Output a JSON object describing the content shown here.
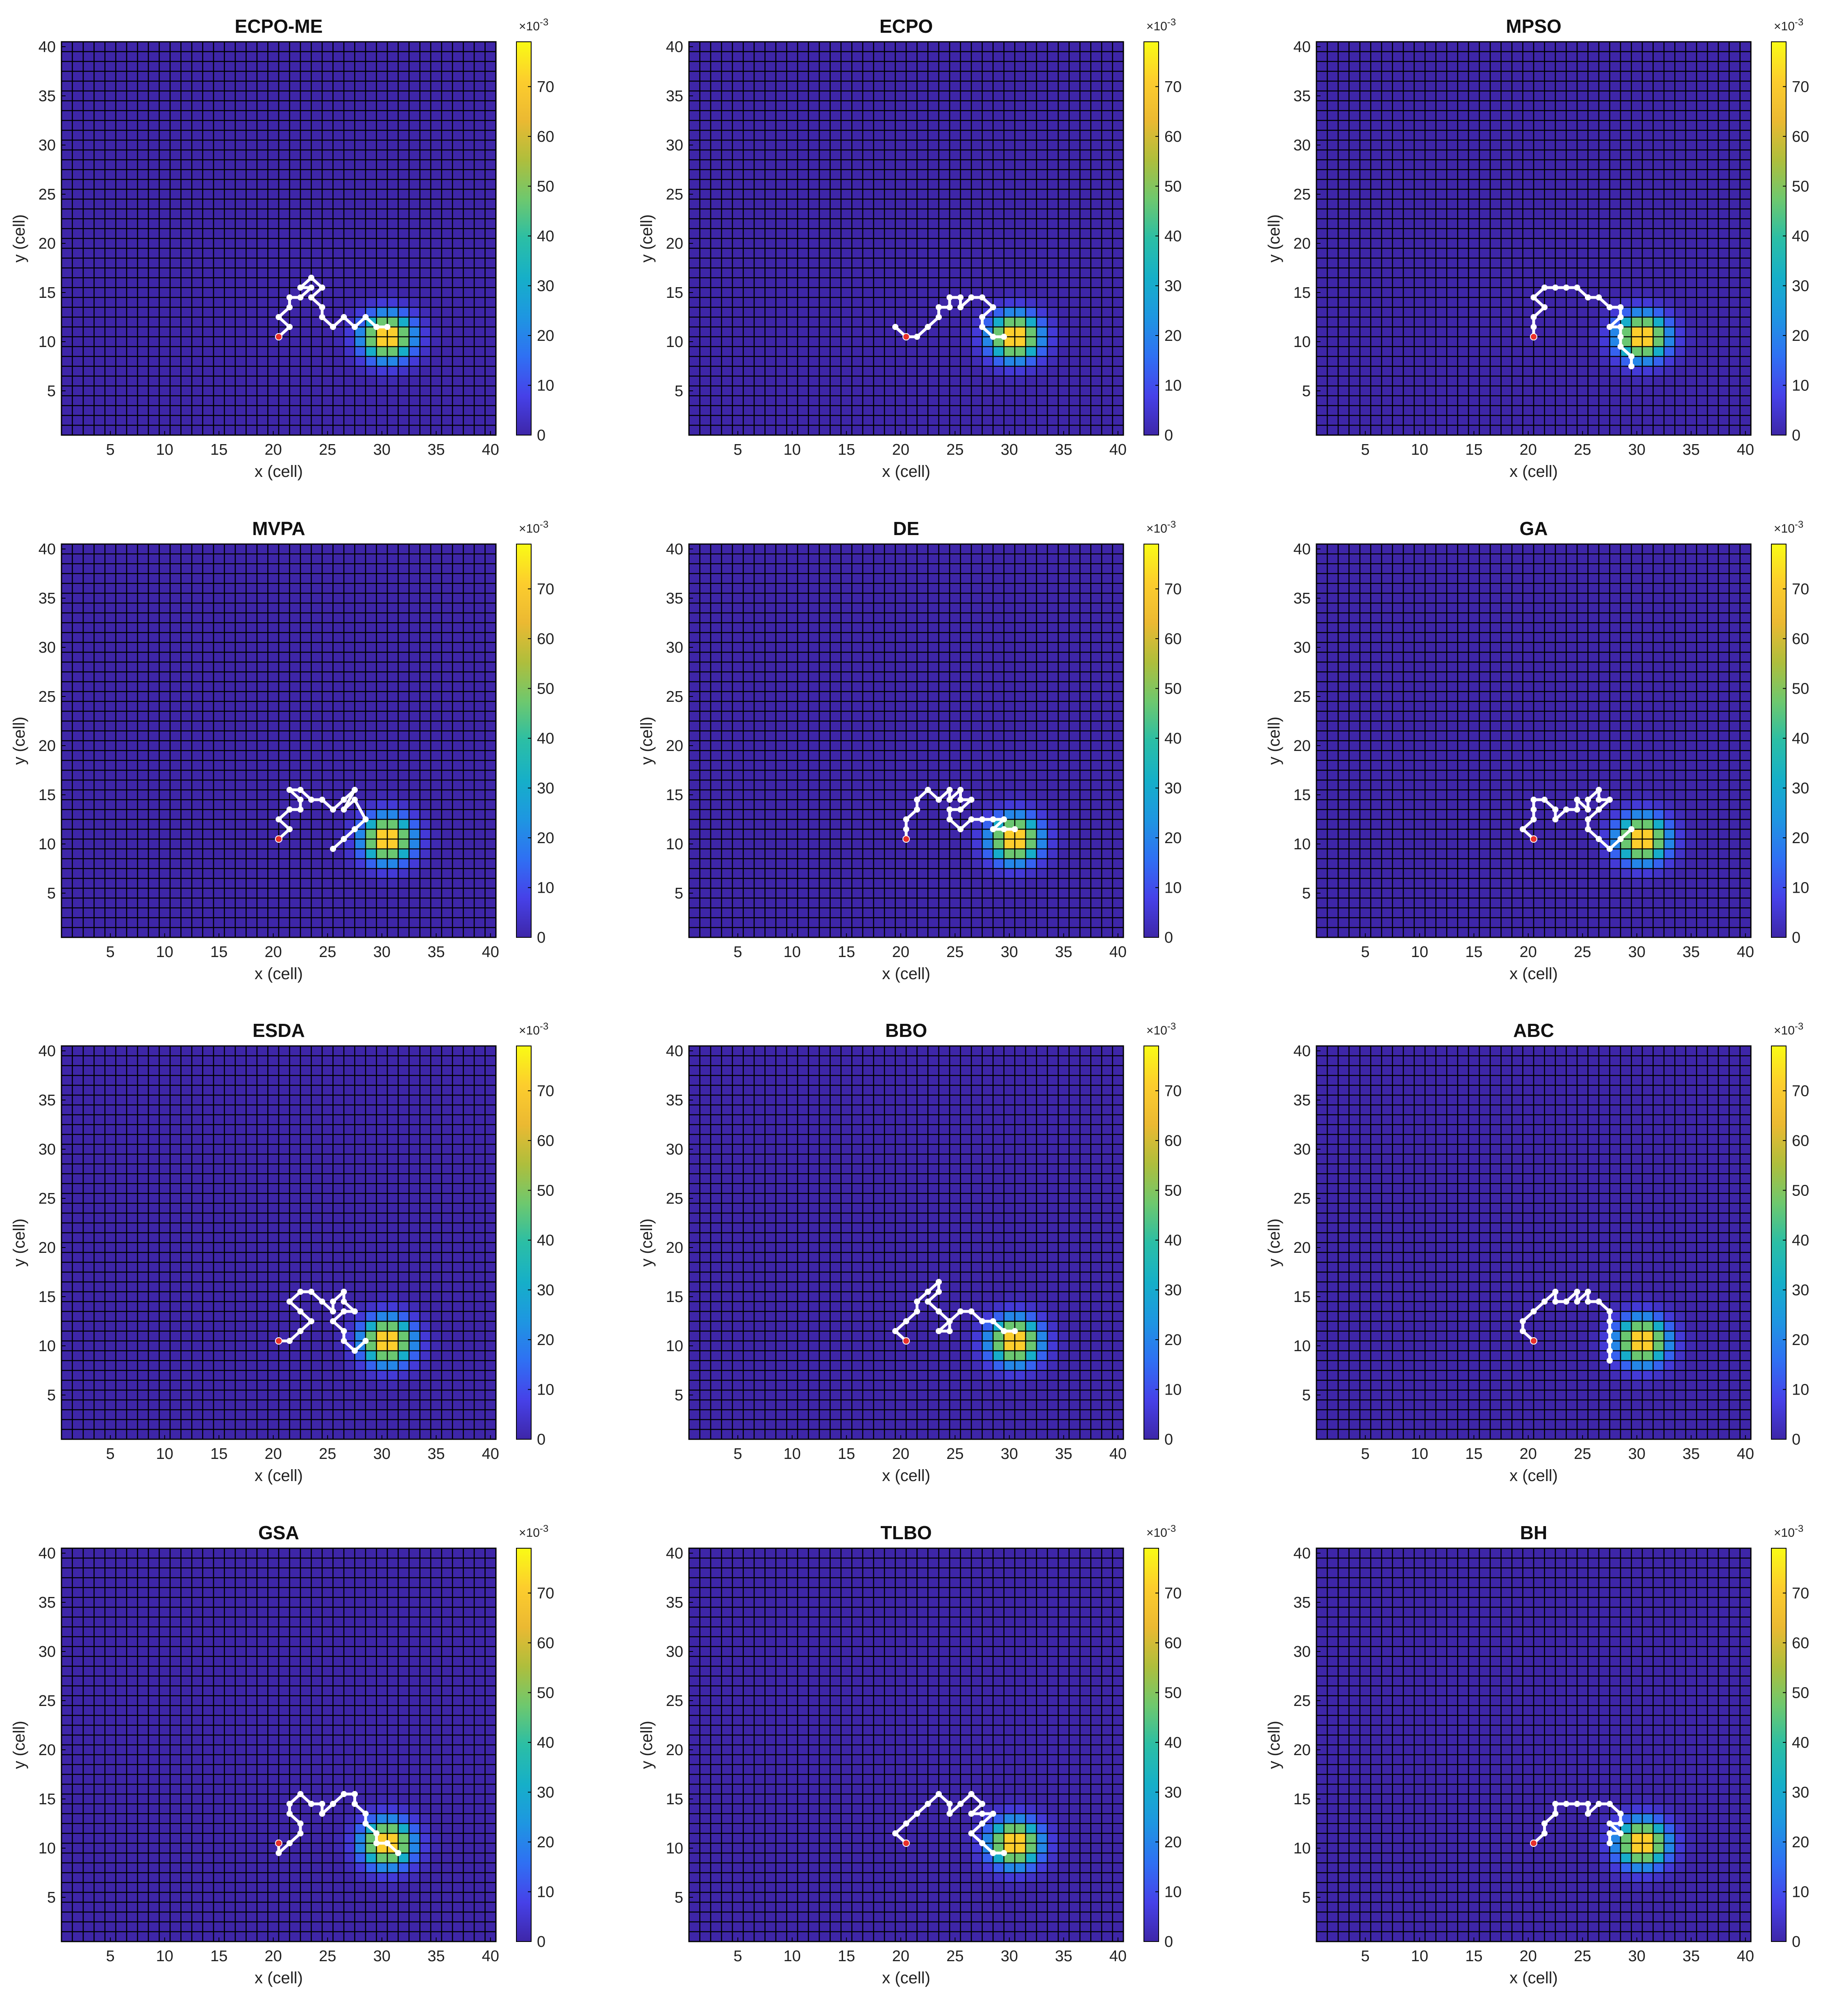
{
  "chart_data": {
    "type": "heatmap",
    "shared": {
      "grid_size": 40,
      "xlabel": "x (cell)",
      "ylabel": "y (cell)",
      "xlim": [
        0.5,
        40.5
      ],
      "ylim": [
        0.5,
        40.5
      ],
      "x_ticks": [
        5,
        10,
        15,
        20,
        25,
        30,
        35,
        40
      ],
      "y_ticks": [
        5,
        10,
        15,
        20,
        25,
        30,
        35,
        40
      ],
      "colorbar": {
        "ticks": [
          0,
          10,
          20,
          30,
          40,
          50,
          60,
          70
        ],
        "range": [
          0,
          79
        ],
        "multiplier_label": "×10",
        "multiplier_exponent": "-3",
        "colormap": "parula"
      },
      "target": {
        "center": [
          30.5,
          10.5
        ],
        "peak": 79,
        "sigma": 1.55
      },
      "start_point": [
        20.5,
        10.5
      ],
      "grid": true,
      "colors": {
        "background_cell": "#3e26a8",
        "grid_line": "#000000",
        "path": "#ffffff",
        "start_marker": "#e8302a"
      }
    },
    "panels": [
      {
        "title": "ECPO-ME",
        "path": [
          [
            20.5,
            10.5
          ],
          [
            21.5,
            11.5
          ],
          [
            20.5,
            12.5
          ],
          [
            21.5,
            13.5
          ],
          [
            21.5,
            14.5
          ],
          [
            22.5,
            14.5
          ],
          [
            23.5,
            15.5
          ],
          [
            22.5,
            15.5
          ],
          [
            23.5,
            16.5
          ],
          [
            24.5,
            15.5
          ],
          [
            23.5,
            14.5
          ],
          [
            24.5,
            13.5
          ],
          [
            24.5,
            12.5
          ],
          [
            25.5,
            11.5
          ],
          [
            26.5,
            12.5
          ],
          [
            27.5,
            11.5
          ],
          [
            28.5,
            12.5
          ],
          [
            29.5,
            11.5
          ],
          [
            30.5,
            11.5
          ]
        ]
      },
      {
        "title": "ECPO",
        "path": [
          [
            20.5,
            10.5
          ],
          [
            19.5,
            11.5
          ],
          [
            20.5,
            10.5
          ],
          [
            21.5,
            10.5
          ],
          [
            22.5,
            11.5
          ],
          [
            23.5,
            12.5
          ],
          [
            23.5,
            13.5
          ],
          [
            24.5,
            13.5
          ],
          [
            24.5,
            14.5
          ],
          [
            25.5,
            14.5
          ],
          [
            25.5,
            13.5
          ],
          [
            26.5,
            14.5
          ],
          [
            27.5,
            14.5
          ],
          [
            28.5,
            13.5
          ],
          [
            27.5,
            12.5
          ],
          [
            27.5,
            11.5
          ],
          [
            28.5,
            10.5
          ],
          [
            29.5,
            10.5
          ]
        ]
      },
      {
        "title": "MPSO",
        "path": [
          [
            20.5,
            10.5
          ],
          [
            20.5,
            11.5
          ],
          [
            20.5,
            12.5
          ],
          [
            21.5,
            13.5
          ],
          [
            20.5,
            14.5
          ],
          [
            21.5,
            15.5
          ],
          [
            22.5,
            15.5
          ],
          [
            23.5,
            15.5
          ],
          [
            24.5,
            15.5
          ],
          [
            25.5,
            14.5
          ],
          [
            26.5,
            14.5
          ],
          [
            27.5,
            13.5
          ],
          [
            28.5,
            13.5
          ],
          [
            28.5,
            12.5
          ],
          [
            27.5,
            11.5
          ],
          [
            28.5,
            11.5
          ],
          [
            28.5,
            10.5
          ],
          [
            28.5,
            9.5
          ],
          [
            29.5,
            8.5
          ],
          [
            29.5,
            7.5
          ]
        ]
      },
      {
        "title": "MVPA",
        "path": [
          [
            20.5,
            10.5
          ],
          [
            21.5,
            11.5
          ],
          [
            20.5,
            12.5
          ],
          [
            21.5,
            13.5
          ],
          [
            22.5,
            13.5
          ],
          [
            22.5,
            14.5
          ],
          [
            21.5,
            15.5
          ],
          [
            22.5,
            15.5
          ],
          [
            23.5,
            14.5
          ],
          [
            24.5,
            14.5
          ],
          [
            25.5,
            13.5
          ],
          [
            26.5,
            14.5
          ],
          [
            27.5,
            15.5
          ],
          [
            26.5,
            13.5
          ],
          [
            27.5,
            14.5
          ],
          [
            28.5,
            12.5
          ],
          [
            27.5,
            11.5
          ],
          [
            26.5,
            10.5
          ],
          [
            25.5,
            9.5
          ]
        ]
      },
      {
        "title": "DE",
        "path": [
          [
            20.5,
            10.5
          ],
          [
            20.5,
            11.5
          ],
          [
            20.5,
            12.5
          ],
          [
            21.5,
            13.5
          ],
          [
            21.5,
            14.5
          ],
          [
            22.5,
            15.5
          ],
          [
            23.5,
            14.5
          ],
          [
            24.5,
            15.5
          ],
          [
            24.5,
            14.5
          ],
          [
            25.5,
            15.5
          ],
          [
            25.5,
            14.5
          ],
          [
            26.5,
            14.5
          ],
          [
            25.5,
            13.5
          ],
          [
            24.5,
            13.5
          ],
          [
            24.5,
            12.5
          ],
          [
            25.5,
            11.5
          ],
          [
            26.5,
            12.5
          ],
          [
            27.5,
            12.5
          ],
          [
            28.5,
            12.5
          ],
          [
            29.5,
            12.5
          ],
          [
            28.5,
            11.5
          ],
          [
            29.5,
            11.5
          ],
          [
            30.5,
            11.5
          ]
        ]
      },
      {
        "title": "GA",
        "path": [
          [
            20.5,
            10.5
          ],
          [
            19.5,
            11.5
          ],
          [
            20.5,
            12.5
          ],
          [
            20.5,
            13.5
          ],
          [
            20.5,
            14.5
          ],
          [
            21.5,
            14.5
          ],
          [
            22.5,
            13.5
          ],
          [
            22.5,
            12.5
          ],
          [
            23.5,
            13.5
          ],
          [
            24.5,
            13.5
          ],
          [
            24.5,
            14.5
          ],
          [
            25.5,
            13.5
          ],
          [
            25.5,
            14.5
          ],
          [
            26.5,
            15.5
          ],
          [
            26.5,
            14.5
          ],
          [
            27.5,
            14.5
          ],
          [
            26.5,
            13.5
          ],
          [
            25.5,
            12.5
          ],
          [
            25.5,
            11.5
          ],
          [
            26.5,
            10.5
          ],
          [
            27.5,
            9.5
          ],
          [
            28.5,
            10.5
          ],
          [
            29.5,
            11.5
          ]
        ]
      },
      {
        "title": "ESDA",
        "path": [
          [
            20.5,
            10.5
          ],
          [
            21.5,
            10.5
          ],
          [
            22.5,
            11.5
          ],
          [
            23.5,
            12.5
          ],
          [
            22.5,
            13.5
          ],
          [
            21.5,
            14.5
          ],
          [
            22.5,
            15.5
          ],
          [
            23.5,
            15.5
          ],
          [
            24.5,
            14.5
          ],
          [
            25.5,
            13.5
          ],
          [
            25.5,
            14.5
          ],
          [
            26.5,
            15.5
          ],
          [
            26.5,
            14.5
          ],
          [
            27.5,
            13.5
          ],
          [
            26.5,
            13.5
          ],
          [
            25.5,
            12.5
          ],
          [
            26.5,
            11.5
          ],
          [
            26.5,
            10.5
          ],
          [
            27.5,
            9.5
          ],
          [
            28.5,
            10.5
          ]
        ]
      },
      {
        "title": "BBO",
        "path": [
          [
            20.5,
            10.5
          ],
          [
            19.5,
            11.5
          ],
          [
            20.5,
            12.5
          ],
          [
            21.5,
            13.5
          ],
          [
            21.5,
            14.5
          ],
          [
            22.5,
            15.5
          ],
          [
            23.5,
            16.5
          ],
          [
            23.5,
            15.5
          ],
          [
            22.5,
            14.5
          ],
          [
            23.5,
            13.5
          ],
          [
            24.5,
            12.5
          ],
          [
            23.5,
            11.5
          ],
          [
            24.5,
            11.5
          ],
          [
            24.5,
            12.5
          ],
          [
            25.5,
            13.5
          ],
          [
            26.5,
            13.5
          ],
          [
            27.5,
            12.5
          ],
          [
            28.5,
            12.5
          ],
          [
            29.5,
            11.5
          ],
          [
            30.5,
            11.5
          ]
        ]
      },
      {
        "title": "ABC",
        "path": [
          [
            20.5,
            10.5
          ],
          [
            19.5,
            11.5
          ],
          [
            19.5,
            12.5
          ],
          [
            20.5,
            13.5
          ],
          [
            21.5,
            14.5
          ],
          [
            22.5,
            15.5
          ],
          [
            22.5,
            14.5
          ],
          [
            23.5,
            14.5
          ],
          [
            24.5,
            15.5
          ],
          [
            24.5,
            14.5
          ],
          [
            25.5,
            15.5
          ],
          [
            25.5,
            14.5
          ],
          [
            26.5,
            14.5
          ],
          [
            27.5,
            13.5
          ],
          [
            27.5,
            12.5
          ],
          [
            27.5,
            11.5
          ],
          [
            27.5,
            10.5
          ],
          [
            27.5,
            9.5
          ],
          [
            27.5,
            8.5
          ]
        ]
      },
      {
        "title": "GSA",
        "path": [
          [
            20.5,
            10.5
          ],
          [
            20.5,
            9.5
          ],
          [
            21.5,
            10.5
          ],
          [
            22.5,
            11.5
          ],
          [
            22.5,
            12.5
          ],
          [
            21.5,
            13.5
          ],
          [
            21.5,
            14.5
          ],
          [
            22.5,
            15.5
          ],
          [
            23.5,
            14.5
          ],
          [
            24.5,
            14.5
          ],
          [
            24.5,
            13.5
          ],
          [
            25.5,
            14.5
          ],
          [
            26.5,
            15.5
          ],
          [
            27.5,
            15.5
          ],
          [
            27.5,
            14.5
          ],
          [
            28.5,
            13.5
          ],
          [
            28.5,
            12.5
          ],
          [
            29.5,
            11.5
          ],
          [
            29.5,
            10.5
          ],
          [
            30.5,
            10.5
          ],
          [
            31.5,
            9.5
          ]
        ]
      },
      {
        "title": "TLBO",
        "path": [
          [
            20.5,
            10.5
          ],
          [
            19.5,
            11.5
          ],
          [
            20.5,
            12.5
          ],
          [
            21.5,
            13.5
          ],
          [
            22.5,
            14.5
          ],
          [
            23.5,
            15.5
          ],
          [
            24.5,
            14.5
          ],
          [
            24.5,
            13.5
          ],
          [
            25.5,
            14.5
          ],
          [
            26.5,
            15.5
          ],
          [
            27.5,
            14.5
          ],
          [
            26.5,
            13.5
          ],
          [
            27.5,
            13.5
          ],
          [
            28.5,
            13.5
          ],
          [
            27.5,
            12.5
          ],
          [
            26.5,
            11.5
          ],
          [
            27.5,
            10.5
          ],
          [
            28.5,
            9.5
          ],
          [
            29.5,
            9.5
          ]
        ]
      },
      {
        "title": "BH",
        "path": [
          [
            20.5,
            10.5
          ],
          [
            21.5,
            11.5
          ],
          [
            21.5,
            12.5
          ],
          [
            22.5,
            13.5
          ],
          [
            22.5,
            14.5
          ],
          [
            23.5,
            14.5
          ],
          [
            24.5,
            14.5
          ],
          [
            25.5,
            14.5
          ],
          [
            25.5,
            13.5
          ],
          [
            26.5,
            14.5
          ],
          [
            27.5,
            14.5
          ],
          [
            28.5,
            13.5
          ],
          [
            28.5,
            12.5
          ],
          [
            27.5,
            12.5
          ],
          [
            28.5,
            11.5
          ],
          [
            27.5,
            11.5
          ],
          [
            27.5,
            10.5
          ]
        ]
      }
    ]
  }
}
